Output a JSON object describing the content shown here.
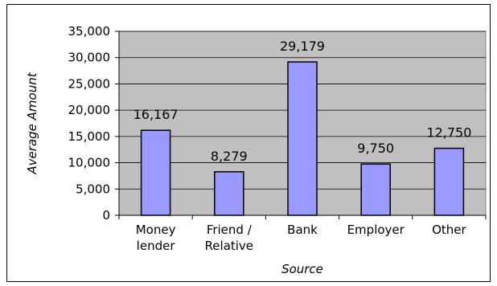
{
  "chart_data": {
    "type": "bar",
    "categories": [
      [
        "Money",
        "lender"
      ],
      [
        "Friend /",
        "Relative"
      ],
      [
        "Bank"
      ],
      [
        "Employer"
      ],
      [
        "Other"
      ]
    ],
    "values": [
      16167,
      8279,
      29179,
      9750,
      12750
    ],
    "data_labels": [
      "16,167",
      "8,279",
      "29,179",
      "9,750",
      "12,750"
    ],
    "title": "",
    "xlabel": "Source",
    "ylabel": "Average Amount",
    "ylim": [
      0,
      35000
    ],
    "ytick_values": [
      0,
      5000,
      10000,
      15000,
      20000,
      25000,
      30000,
      35000
    ],
    "ytick_labels": [
      "0",
      "5,000",
      "10,000",
      "15,000",
      "20,000",
      "25,000",
      "30,000",
      "35,000"
    ],
    "grid": true,
    "legend": "none",
    "colors": {
      "bar_fill": "#9999ff",
      "bar_stroke": "#000000",
      "plot_background": "#c0c0c0",
      "gridline": "#000000"
    }
  }
}
